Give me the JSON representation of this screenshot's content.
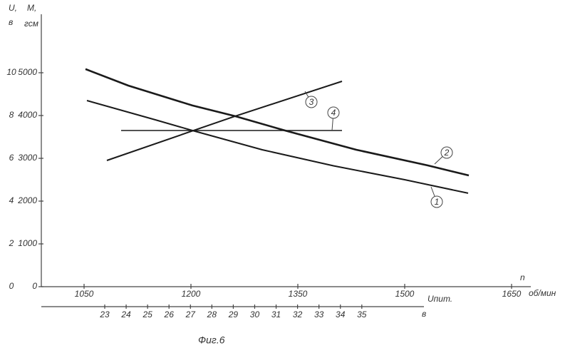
{
  "chart_data": {
    "type": "line",
    "y_label": "U,",
    "y_unit": "в",
    "y2_label": "M,",
    "y2_unit": "гсм",
    "x_label": "n",
    "x_unit": "об/мин",
    "x2_label": "Uпит.",
    "x2_unit": "в",
    "caption": "Фиг.6",
    "xlim": [
      990,
      1677
    ],
    "xticks": [
      1050,
      1200,
      1350,
      1500,
      1650
    ],
    "x2lim": [
      20.04,
      37.9
    ],
    "x2ticks": [
      23,
      24,
      25,
      26,
      27,
      28,
      29,
      30,
      31,
      32,
      33,
      34,
      35
    ],
    "ylim": [
      0,
      12.7
    ],
    "yticks": [
      0,
      2,
      4,
      6,
      8,
      10
    ],
    "y2lim": [
      0,
      6350
    ],
    "y2ticks": [
      0,
      1000,
      2000,
      3000,
      4000,
      5000
    ],
    "series": [
      {
        "name": "1",
        "color": "#1a1a1a",
        "x": [
          1054,
          1150,
          1202,
          1300,
          1400,
          1500,
          1589
        ],
        "values": [
          8.7,
          7.8,
          7.3,
          6.4,
          5.65,
          5.0,
          4.37
        ]
      },
      {
        "name": "2",
        "color": "#1a1a1a",
        "x": [
          1052,
          1112,
          1202,
          1262,
          1332,
          1432,
          1532,
          1590
        ],
        "values": [
          10.17,
          9.4,
          8.47,
          7.97,
          7.3,
          6.4,
          5.67,
          5.2
        ]
      },
      {
        "name": "3",
        "color": "#1a1a1a",
        "x": [
          1082,
          1262,
          1412
        ],
        "values": [
          5.9,
          7.97,
          9.6
        ]
      },
      {
        "name": "4",
        "color": "#1a1a1a",
        "x": [
          1102,
          1412
        ],
        "values": [
          7.3,
          7.3
        ]
      }
    ]
  }
}
